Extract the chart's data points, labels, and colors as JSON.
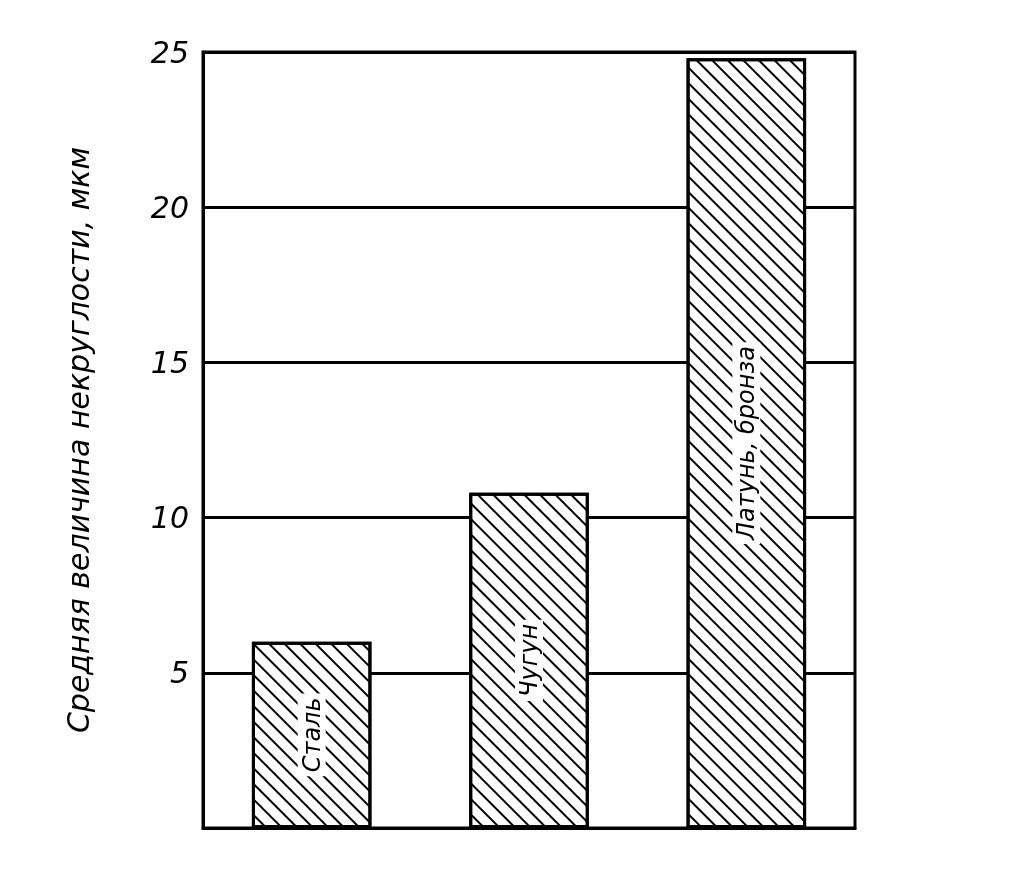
{
  "chart_data": {
    "type": "bar",
    "ylabel": "Средняя величина некруглости, мкм",
    "categories": [
      "Сталь",
      "Чугун",
      "Латунь, бронза"
    ],
    "values": [
      6,
      10.8,
      24.8
    ],
    "color": "#ffffff",
    "ylim": [
      0,
      25
    ],
    "yticks": [
      5,
      10,
      15,
      20,
      25
    ],
    "grid": "y"
  }
}
